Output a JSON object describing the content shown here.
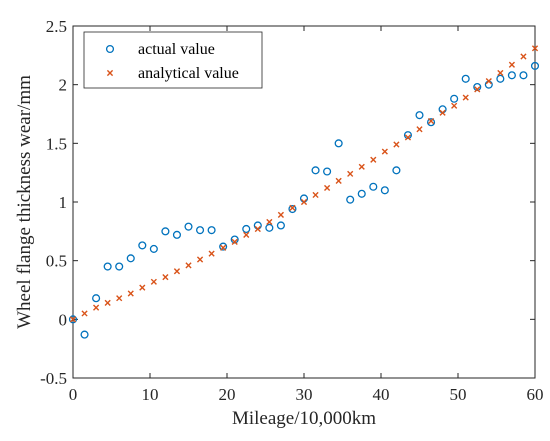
{
  "chart_data": {
    "type": "scatter",
    "title": "",
    "xlabel": "Mileage/10,000km",
    "ylabel": "Wheel flange thickness wear/mm",
    "xlim": [
      0,
      60
    ],
    "ylim": [
      -0.5,
      2.5
    ],
    "xticks": [
      0,
      10,
      20,
      30,
      40,
      50,
      60
    ],
    "yticks": [
      -0.5,
      0,
      0.5,
      1,
      1.5,
      2,
      2.5
    ],
    "xtick_labels": [
      "0",
      "10",
      "20",
      "30",
      "40",
      "50",
      "60"
    ],
    "ytick_labels": [
      "-0.5",
      "0",
      "0.5",
      "1",
      "1.5",
      "2",
      "2.5"
    ],
    "grid": false,
    "legend_position": "top-left",
    "series": [
      {
        "name": "actual value",
        "marker": "circle",
        "color": "#0072BD",
        "x": [
          0,
          1.5,
          3,
          4.5,
          6,
          7.5,
          9,
          10.5,
          12,
          13.5,
          15,
          16.5,
          18,
          19.5,
          21,
          22.5,
          24,
          25.5,
          27,
          28.5,
          30,
          31.5,
          33,
          34.5,
          36,
          37.5,
          39,
          40.5,
          42,
          43.5,
          45,
          46.5,
          48,
          49.5,
          51,
          52.5,
          54,
          55.5,
          57,
          58.5,
          60
        ],
        "y": [
          0,
          -0.13,
          0.18,
          0.45,
          0.45,
          0.52,
          0.63,
          0.6,
          0.75,
          0.72,
          0.79,
          0.76,
          0.76,
          0.62,
          0.68,
          0.77,
          0.8,
          0.78,
          0.8,
          0.94,
          1.03,
          1.27,
          1.26,
          1.5,
          1.02,
          1.07,
          1.13,
          1.1,
          1.27,
          1.57,
          1.74,
          1.68,
          1.79,
          1.88,
          2.05,
          1.98,
          2.0,
          2.05,
          2.08,
          2.08,
          2.16
        ]
      },
      {
        "name": "analytical value",
        "marker": "x",
        "color": "#D95319",
        "x": [
          0,
          1.5,
          3,
          4.5,
          6,
          7.5,
          9,
          10.5,
          12,
          13.5,
          15,
          16.5,
          18,
          19.5,
          21,
          22.5,
          24,
          25.5,
          27,
          28.5,
          30,
          31.5,
          33,
          34.5,
          36,
          37.5,
          39,
          40.5,
          42,
          43.5,
          45,
          46.5,
          48,
          49.5,
          51,
          52.5,
          54,
          55.5,
          57,
          58.5,
          60
        ],
        "y": [
          0,
          0.05,
          0.1,
          0.14,
          0.18,
          0.22,
          0.27,
          0.32,
          0.36,
          0.41,
          0.46,
          0.51,
          0.56,
          0.61,
          0.66,
          0.72,
          0.77,
          0.83,
          0.89,
          0.95,
          1.0,
          1.06,
          1.12,
          1.18,
          1.24,
          1.3,
          1.36,
          1.43,
          1.49,
          1.55,
          1.62,
          1.69,
          1.76,
          1.82,
          1.89,
          1.96,
          2.03,
          2.1,
          2.17,
          2.24,
          2.31
        ]
      }
    ]
  }
}
